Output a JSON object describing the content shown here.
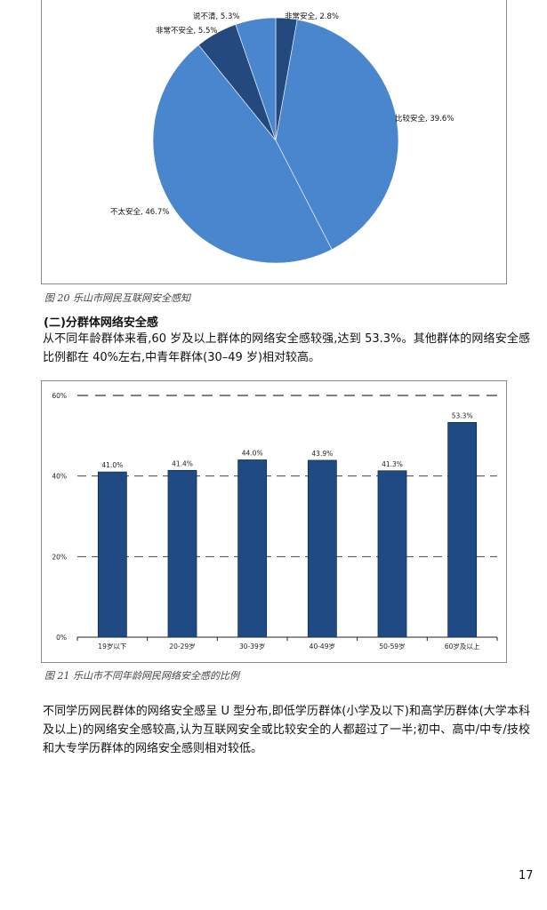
{
  "pie_caption": "图 20 乐山市网民互联网安全感知",
  "section_heading": "(二)分群体网络安全感",
  "paragraph1": "从不同年龄群体来看,60 岁及以上群体的网络安全感较强,达到 53.3%。其他群体的网络安全感比例都在 40%左右,中青年群体(30–49 岁)相对较高。",
  "bar_caption": "图 21 乐山市不同年龄网民网络安全感的比例",
  "paragraph2": "不同学历网民群体的网络安全感呈 U 型分布,即低学历群体(小学及以下)和高学历群体(大学本科及以上)的网络安全感较高,认为互联网安全或比较安全的人都超过了一半;初中、高中/中专/技校和大专学历群体的网络安全感则相对较低。",
  "page_number": "17",
  "chart_data": [
    {
      "type": "pie",
      "title": "",
      "slices": [
        {
          "label": "非常安全",
          "value": 2.8,
          "display": "非常安全, 2.8%",
          "color": "#24497f"
        },
        {
          "label": "比较安全",
          "value": 39.6,
          "display": "比较安全, 39.6%",
          "color": "#4a86cd"
        },
        {
          "label": "不太安全",
          "value": 46.7,
          "display": "不太安全, 46.7%",
          "color": "#4a86cd"
        },
        {
          "label": "非常不安全",
          "value": 5.5,
          "display": "非常不安全, 5.5%",
          "color": "#24497f"
        },
        {
          "label": "说不清",
          "value": 5.3,
          "display": "说不清, 5.3%",
          "color": "#4a86cd"
        }
      ]
    },
    {
      "type": "bar",
      "title": "",
      "categories": [
        "19岁以下",
        "20-29岁",
        "30-39岁",
        "40-49岁",
        "50-59岁",
        "60岁及以上"
      ],
      "values": [
        41.0,
        41.4,
        44.0,
        43.9,
        41.3,
        53.3
      ],
      "value_labels": [
        "41.0%",
        "41.4%",
        "44.0%",
        "43.9%",
        "41.3%",
        "53.3%"
      ],
      "ylim": [
        0,
        60
      ],
      "yticks": [
        "0%",
        "20%",
        "40%",
        "60%"
      ],
      "ytick_values": [
        0,
        20,
        40,
        60
      ],
      "bar_color": "#1f4a84",
      "grid": "dashed"
    }
  ]
}
